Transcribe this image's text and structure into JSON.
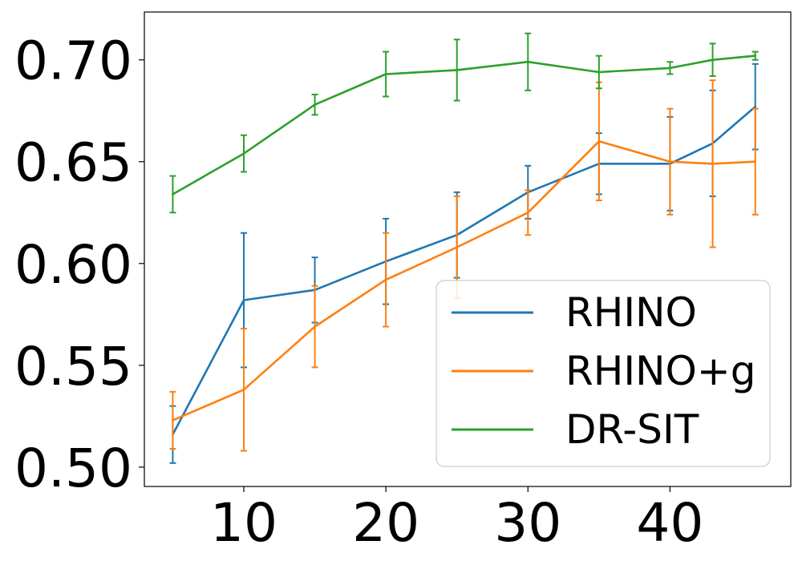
{
  "chart_data": {
    "type": "line",
    "title": "",
    "xlabel": "",
    "ylabel": "",
    "xlim": [
      3,
      48.5
    ],
    "ylim": [
      0.4905,
      0.7235
    ],
    "x_ticks": [
      10,
      20,
      30,
      40
    ],
    "y_ticks": [
      0.5,
      0.55,
      0.6,
      0.65,
      0.7
    ],
    "x_tick_labels": [
      "10",
      "20",
      "30",
      "40"
    ],
    "y_tick_labels": [
      "0.50",
      "0.55",
      "0.60",
      "0.65",
      "0.70"
    ],
    "grid": false,
    "legend_position": "lower-right",
    "series": [
      {
        "name": "RHINO",
        "color": "#1f77b4",
        "x": [
          5,
          10,
          15,
          20,
          25,
          30,
          35,
          40,
          43,
          46
        ],
        "y": [
          0.516,
          0.582,
          0.587,
          0.601,
          0.614,
          0.635,
          0.649,
          0.649,
          0.659,
          0.677
        ],
        "err": [
          0.014,
          0.033,
          0.016,
          0.021,
          0.021,
          0.013,
          0.015,
          0.023,
          0.026,
          0.021
        ]
      },
      {
        "name": "RHINO+g",
        "color": "#ff7f0e",
        "x": [
          5,
          10,
          15,
          20,
          25,
          30,
          35,
          40,
          43,
          46
        ],
        "y": [
          0.523,
          0.538,
          0.569,
          0.592,
          0.608,
          0.625,
          0.66,
          0.65,
          0.649,
          0.65
        ],
        "err": [
          0.014,
          0.03,
          0.02,
          0.023,
          0.025,
          0.011,
          0.029,
          0.026,
          0.041,
          0.026
        ]
      },
      {
        "name": "DR-SIT",
        "color": "#2ca02c",
        "x": [
          5,
          10,
          15,
          20,
          25,
          30,
          35,
          40,
          43,
          46
        ],
        "y": [
          0.634,
          0.654,
          0.678,
          0.693,
          0.695,
          0.699,
          0.694,
          0.696,
          0.7,
          0.702
        ],
        "err": [
          0.009,
          0.009,
          0.005,
          0.011,
          0.015,
          0.014,
          0.008,
          0.003,
          0.008,
          0.002
        ]
      }
    ]
  }
}
